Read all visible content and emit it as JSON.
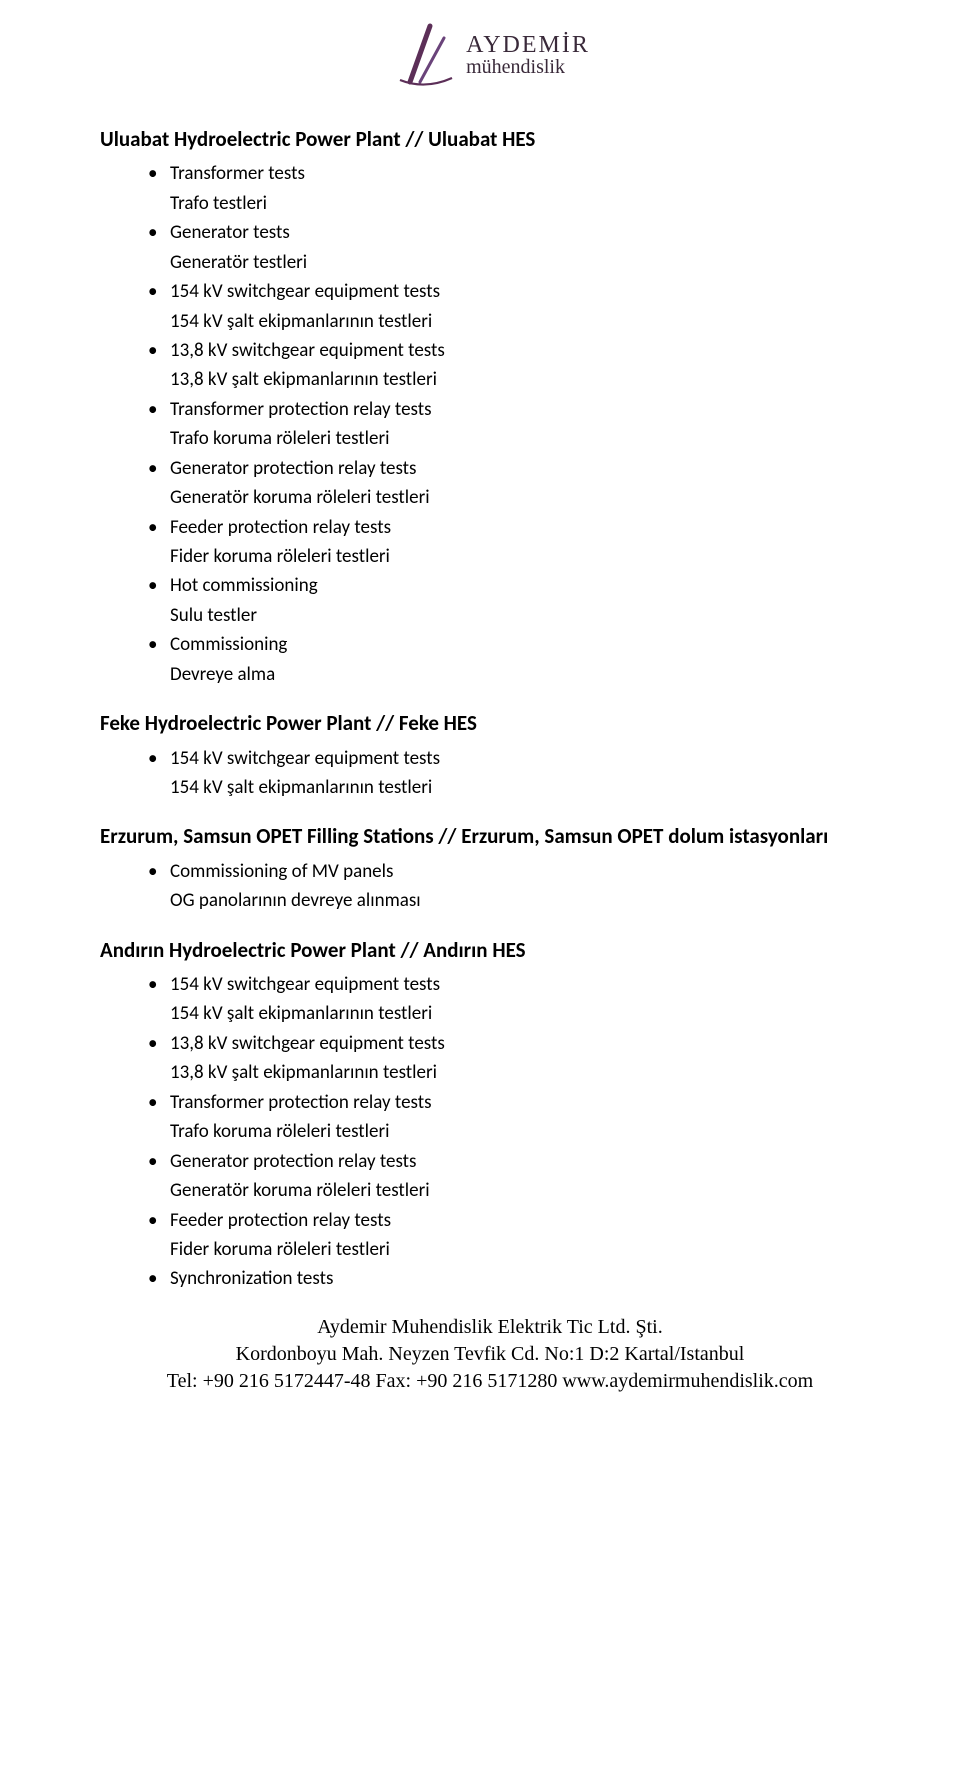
{
  "logo": {
    "line1": "AYDEMİR",
    "line2": "mühendislik",
    "stroke_color": "#5c2f58",
    "accent_color": "#6a437a"
  },
  "sections": [
    {
      "title": "Uluabat Hydroelectric Power Plant  //  Uluabat HES",
      "items": [
        {
          "en": "Transformer tests",
          "tr": "Trafo testleri"
        },
        {
          "en": "Generator tests",
          "tr": "Generatör testleri"
        },
        {
          "en": "154 kV switchgear equipment tests",
          "tr": "154 kV şalt ekipmanlarının testleri"
        },
        {
          "en": "13,8 kV switchgear equipment tests",
          "tr": "13,8 kV şalt ekipmanlarının testleri"
        },
        {
          "en": "Transformer protection relay tests",
          "tr": "Trafo koruma röleleri testleri"
        },
        {
          "en": "Generator protection relay tests",
          "tr": "Generatör koruma röleleri testleri"
        },
        {
          "en": "Feeder protection relay tests",
          "tr": "Fider koruma röleleri testleri"
        },
        {
          "en": "Hot commissioning",
          "tr": "Sulu testler"
        },
        {
          "en": "Commissioning",
          "tr": "Devreye alma"
        }
      ]
    },
    {
      "title": "Feke Hydroelectric Power Plant  //  Feke HES",
      "items": [
        {
          "en": "154 kV switchgear equipment tests",
          "tr": "154 kV şalt ekipmanlarının testleri"
        }
      ]
    },
    {
      "title": "Erzurum, Samsun OPET Filling Stations  //  Erzurum, Samsun OPET dolum istasyonları",
      "items": [
        {
          "en": "Commissioning of MV panels",
          "tr": "OG panolarının devreye alınması"
        }
      ]
    },
    {
      "title": "Andırın Hydroelectric Power Plant  //  Andırın HES",
      "items": [
        {
          "en": "154 kV switchgear equipment tests",
          "tr": "154 kV şalt ekipmanlarının testleri"
        },
        {
          "en": "13,8 kV switchgear equipment tests",
          "tr": "13,8 kV şalt ekipmanlarının testleri"
        },
        {
          "en": "Transformer protection relay tests",
          "tr": "Trafo koruma röleleri testleri"
        },
        {
          "en": "Generator protection relay tests",
          "tr": "Generatör koruma röleleri testleri"
        },
        {
          "en": "Feeder protection relay tests",
          "tr": "Fider koruma röleleri testleri"
        },
        {
          "en": "Synchronization tests"
        }
      ]
    }
  ],
  "footer": {
    "line1": "Aydemir Muhendislik Elektrik Tic Ltd. Şti.",
    "line2": "Kordonboyu Mah. Neyzen Tevfik Cd. No:1 D:2 Kartal/Istanbul",
    "line3": "Tel: +90 216 5172447-48 Fax: +90 216 5171280 www.aydemirmuhendislik.com"
  }
}
